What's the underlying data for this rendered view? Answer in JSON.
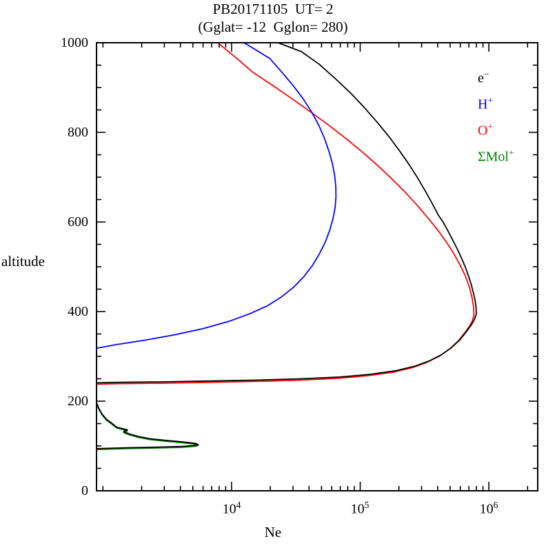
{
  "title": {
    "line1": "PB20171105  UT= 2",
    "line2": "(Gglat= -12  Gglon= 280)"
  },
  "axes": {
    "x": {
      "label": "Ne",
      "scale": "log",
      "ticks": [
        {
          "base": "10",
          "exp": "4",
          "value": 10000
        },
        {
          "base": "10",
          "exp": "5",
          "value": 100000
        },
        {
          "base": "10",
          "exp": "6",
          "value": 1000000
        }
      ]
    },
    "y": {
      "label": "altitude",
      "tick_labels": [
        "1000",
        "800",
        "600",
        "400",
        "200",
        "0"
      ]
    }
  },
  "legend": {
    "items": [
      {
        "label": "e",
        "sup": "−",
        "color": "#000000"
      },
      {
        "label": "H",
        "sup": "+",
        "color": "#0000ff"
      },
      {
        "label": "O",
        "sup": "+",
        "color": "#ff0000"
      },
      {
        "label": "ΣMol",
        "sup": "+",
        "color": "#008000"
      }
    ]
  },
  "chart_data": {
    "type": "line",
    "title": "PB20171105  UT= 2",
    "subtitle": "(Gglat= -12  Gglon= 280)",
    "xlabel": "Ne",
    "ylabel": "altitude",
    "x_scale": "log",
    "xlog_range": [
      2.95,
      6.38
    ],
    "xlim": [
      891,
      2400000
    ],
    "ylim": [
      0,
      1000
    ],
    "x_major_ticks": [
      10000,
      100000,
      1000000
    ],
    "y_major_ticks": [
      0,
      200,
      400,
      600,
      800,
      1000
    ],
    "y_minor_step": 50,
    "grid": false,
    "legend_position": "upper-right-inside",
    "series": [
      {
        "name": "SigmaMol+",
        "label": "ΣMol+",
        "color": "#008000",
        "segments": [
          [
            [
              891,
              92
            ],
            [
              1500,
              94
            ],
            [
              2700,
              95.5
            ],
            [
              4100,
              97
            ],
            [
              5100,
              99
            ],
            [
              5500,
              101
            ],
            [
              5200,
              104
            ],
            [
              4200,
              107
            ],
            [
              3100,
              110.5
            ],
            [
              2350,
              114
            ],
            [
              1900,
              119
            ],
            [
              1600,
              125
            ],
            [
              1450,
              130
            ],
            [
              1550,
              134
            ],
            [
              1280,
              140
            ],
            [
              1180,
              148
            ],
            [
              1060,
              158
            ],
            [
              980,
              170
            ],
            [
              930,
              182
            ],
            [
              891,
              195
            ]
          ]
        ]
      },
      {
        "name": "O+",
        "label": "O+",
        "color": "#ff0000",
        "segments": [
          [
            [
              891,
              238
            ],
            [
              1300,
              239
            ],
            [
              2800,
              240
            ],
            [
              6500,
              242
            ],
            [
              15000,
              244
            ],
            [
              34000,
              247
            ],
            [
              67000,
              251
            ],
            [
              115000,
              257
            ],
            [
              182000,
              265
            ],
            [
              255000,
              275
            ],
            [
              332000,
              287
            ],
            [
              415000,
              301
            ],
            [
              498000,
              317
            ],
            [
              580000,
              335
            ],
            [
              650000,
              353
            ],
            [
              706000,
              367
            ],
            [
              745000,
              379
            ],
            [
              765000,
              392
            ],
            [
              760000,
              410
            ],
            [
              742000,
              430
            ],
            [
              705000,
              455
            ],
            [
              655000,
              480
            ],
            [
              595000,
              505
            ],
            [
              532000,
              530
            ],
            [
              468000,
              555
            ],
            [
              405000,
              580
            ],
            [
              345000,
              605
            ],
            [
              282000,
              635
            ],
            [
              226000,
              665
            ],
            [
              178000,
              695
            ],
            [
              138000,
              725
            ],
            [
              105000,
              755
            ],
            [
              78500,
              785
            ],
            [
              57500,
              815
            ],
            [
              41500,
              845
            ],
            [
              29500,
              875
            ],
            [
              20800,
              905
            ],
            [
              14500,
              935
            ],
            [
              11000,
              965
            ],
            [
              7800,
              1000
            ],
            [
              7000,
              1012
            ]
          ]
        ]
      },
      {
        "name": "H+",
        "label": "H+",
        "color": "#0000ff",
        "segments": [
          [
            [
              891,
              318
            ],
            [
              1250,
              326
            ],
            [
              2100,
              336
            ],
            [
              3600,
              348
            ],
            [
              6000,
              362
            ],
            [
              9500,
              378
            ],
            [
              13800,
              395
            ],
            [
              19000,
              413
            ],
            [
              24500,
              433
            ],
            [
              30500,
              455
            ],
            [
              36500,
              478
            ],
            [
              42500,
              503
            ],
            [
              48000,
              528
            ],
            [
              53500,
              555
            ],
            [
              58000,
              582
            ],
            [
              61500,
              608
            ],
            [
              63800,
              632
            ],
            [
              64800,
              655
            ],
            [
              64600,
              678
            ],
            [
              63400,
              702
            ],
            [
              61000,
              728
            ],
            [
              57500,
              755
            ],
            [
              53000,
              785
            ],
            [
              47800,
              815
            ],
            [
              42000,
              845
            ],
            [
              36000,
              875
            ],
            [
              30000,
              905
            ],
            [
              24500,
              935
            ],
            [
              19800,
              965
            ],
            [
              12500,
              1000
            ],
            [
              11800,
              1012
            ]
          ]
        ]
      },
      {
        "name": "e-",
        "label": "e-",
        "color": "#000000",
        "segments": [
          [
            [
              891,
              94
            ],
            [
              1500,
              96
            ],
            [
              2700,
              97.5
            ],
            [
              4100,
              99
            ],
            [
              5100,
              101
            ],
            [
              5500,
              103
            ],
            [
              5200,
              106
            ],
            [
              4200,
              109
            ],
            [
              3100,
              112.5
            ],
            [
              2350,
              116
            ],
            [
              1900,
              121
            ],
            [
              1600,
              127
            ],
            [
              1450,
              132
            ],
            [
              1550,
              136
            ],
            [
              1280,
              142
            ],
            [
              1180,
              150
            ],
            [
              1060,
              160
            ],
            [
              980,
              172
            ],
            [
              930,
              184
            ],
            [
              891,
              197
            ]
          ],
          [
            [
              891,
              241
            ],
            [
              1300,
              242
            ],
            [
              2800,
              243
            ],
            [
              6500,
              245
            ],
            [
              15000,
              247
            ],
            [
              35000,
              250
            ],
            [
              70000,
              254
            ],
            [
              120000,
              260
            ],
            [
              190000,
              268
            ],
            [
              265000,
              278
            ],
            [
              345000,
              290
            ],
            [
              430000,
              304
            ],
            [
              515000,
              320
            ],
            [
              600000,
              338
            ],
            [
              672000,
              356
            ],
            [
              730000,
              370
            ],
            [
              772000,
              382
            ],
            [
              800000,
              395
            ],
            [
              795000,
              410
            ],
            [
              782000,
              425
            ],
            [
              758000,
              442
            ],
            [
              727000,
              462
            ],
            [
              690000,
              482
            ],
            [
              655000,
              500
            ],
            [
              620000,
              516
            ],
            [
              583000,
              533
            ],
            [
              545000,
              550
            ],
            [
              510000,
              566
            ],
            [
              475000,
              583
            ],
            [
              440000,
              600
            ],
            [
              405000,
              615
            ],
            [
              365000,
              640
            ],
            [
              322000,
              668
            ],
            [
              280000,
              698
            ],
            [
              240000,
              728
            ],
            [
              203000,
              758
            ],
            [
              168000,
              790
            ],
            [
              136000,
              822
            ],
            [
              108000,
              855
            ],
            [
              84000,
              888
            ],
            [
              64000,
              920
            ],
            [
              48000,
              952
            ],
            [
              35000,
              980
            ],
            [
              23000,
              1000
            ],
            [
              21000,
              1012
            ]
          ]
        ]
      }
    ]
  }
}
